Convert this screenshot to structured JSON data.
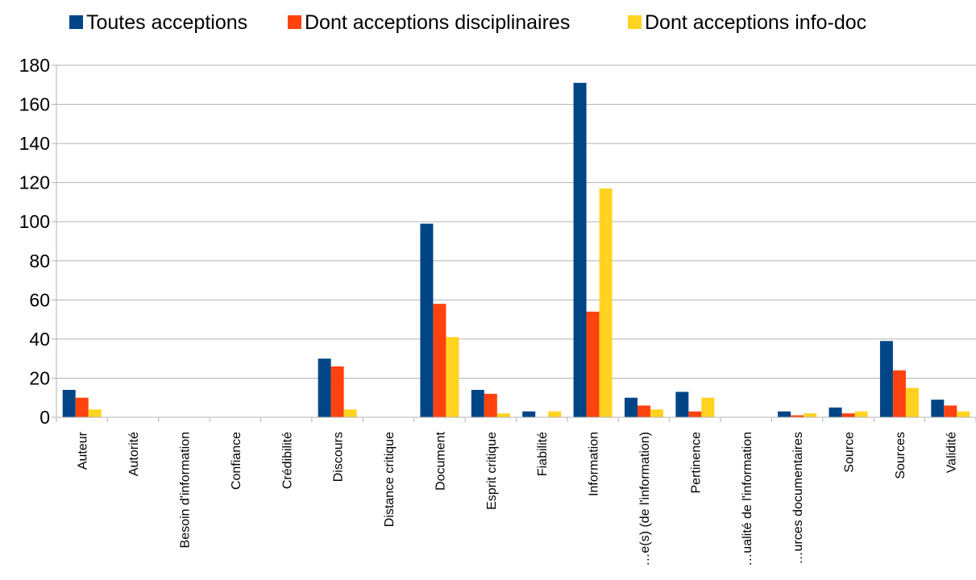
{
  "chart_data": {
    "type": "bar",
    "title": "",
    "xlabel": "",
    "ylabel": "",
    "ylim": [
      0,
      180
    ],
    "yticks": [
      0,
      20,
      40,
      60,
      80,
      100,
      120,
      140,
      160,
      180
    ],
    "grid": true,
    "legend_position": "top",
    "categories": [
      "Auteur",
      "Autorité",
      "Besoin d'information",
      "Confiance",
      "Crédibilité",
      "Discours",
      "Distance critique",
      "Document",
      "Esprit critique",
      "Fiabilité",
      "Information",
      "…e(s) (de l'information)",
      "Pertinence",
      "…ualité de l'information",
      "…urces documentaires",
      "Source",
      "Sources",
      "Validité"
    ],
    "series": [
      {
        "name": "Toutes acceptions",
        "color": "#004586",
        "values": [
          14,
          0,
          0,
          0,
          0,
          30,
          0,
          99,
          14,
          3,
          171,
          10,
          13,
          0,
          3,
          5,
          39,
          9
        ]
      },
      {
        "name": "Dont acceptions disciplinaires",
        "color": "#ff420e",
        "values": [
          10,
          0,
          0,
          0,
          0,
          26,
          0,
          58,
          12,
          0,
          54,
          6,
          3,
          0,
          1,
          2,
          24,
          6
        ]
      },
      {
        "name": "Dont acceptions info-doc",
        "color": "#ffd320",
        "values": [
          4,
          0,
          0,
          0,
          0,
          4,
          0,
          41,
          2,
          3,
          117,
          4,
          10,
          0,
          2,
          3,
          15,
          3
        ]
      }
    ]
  }
}
